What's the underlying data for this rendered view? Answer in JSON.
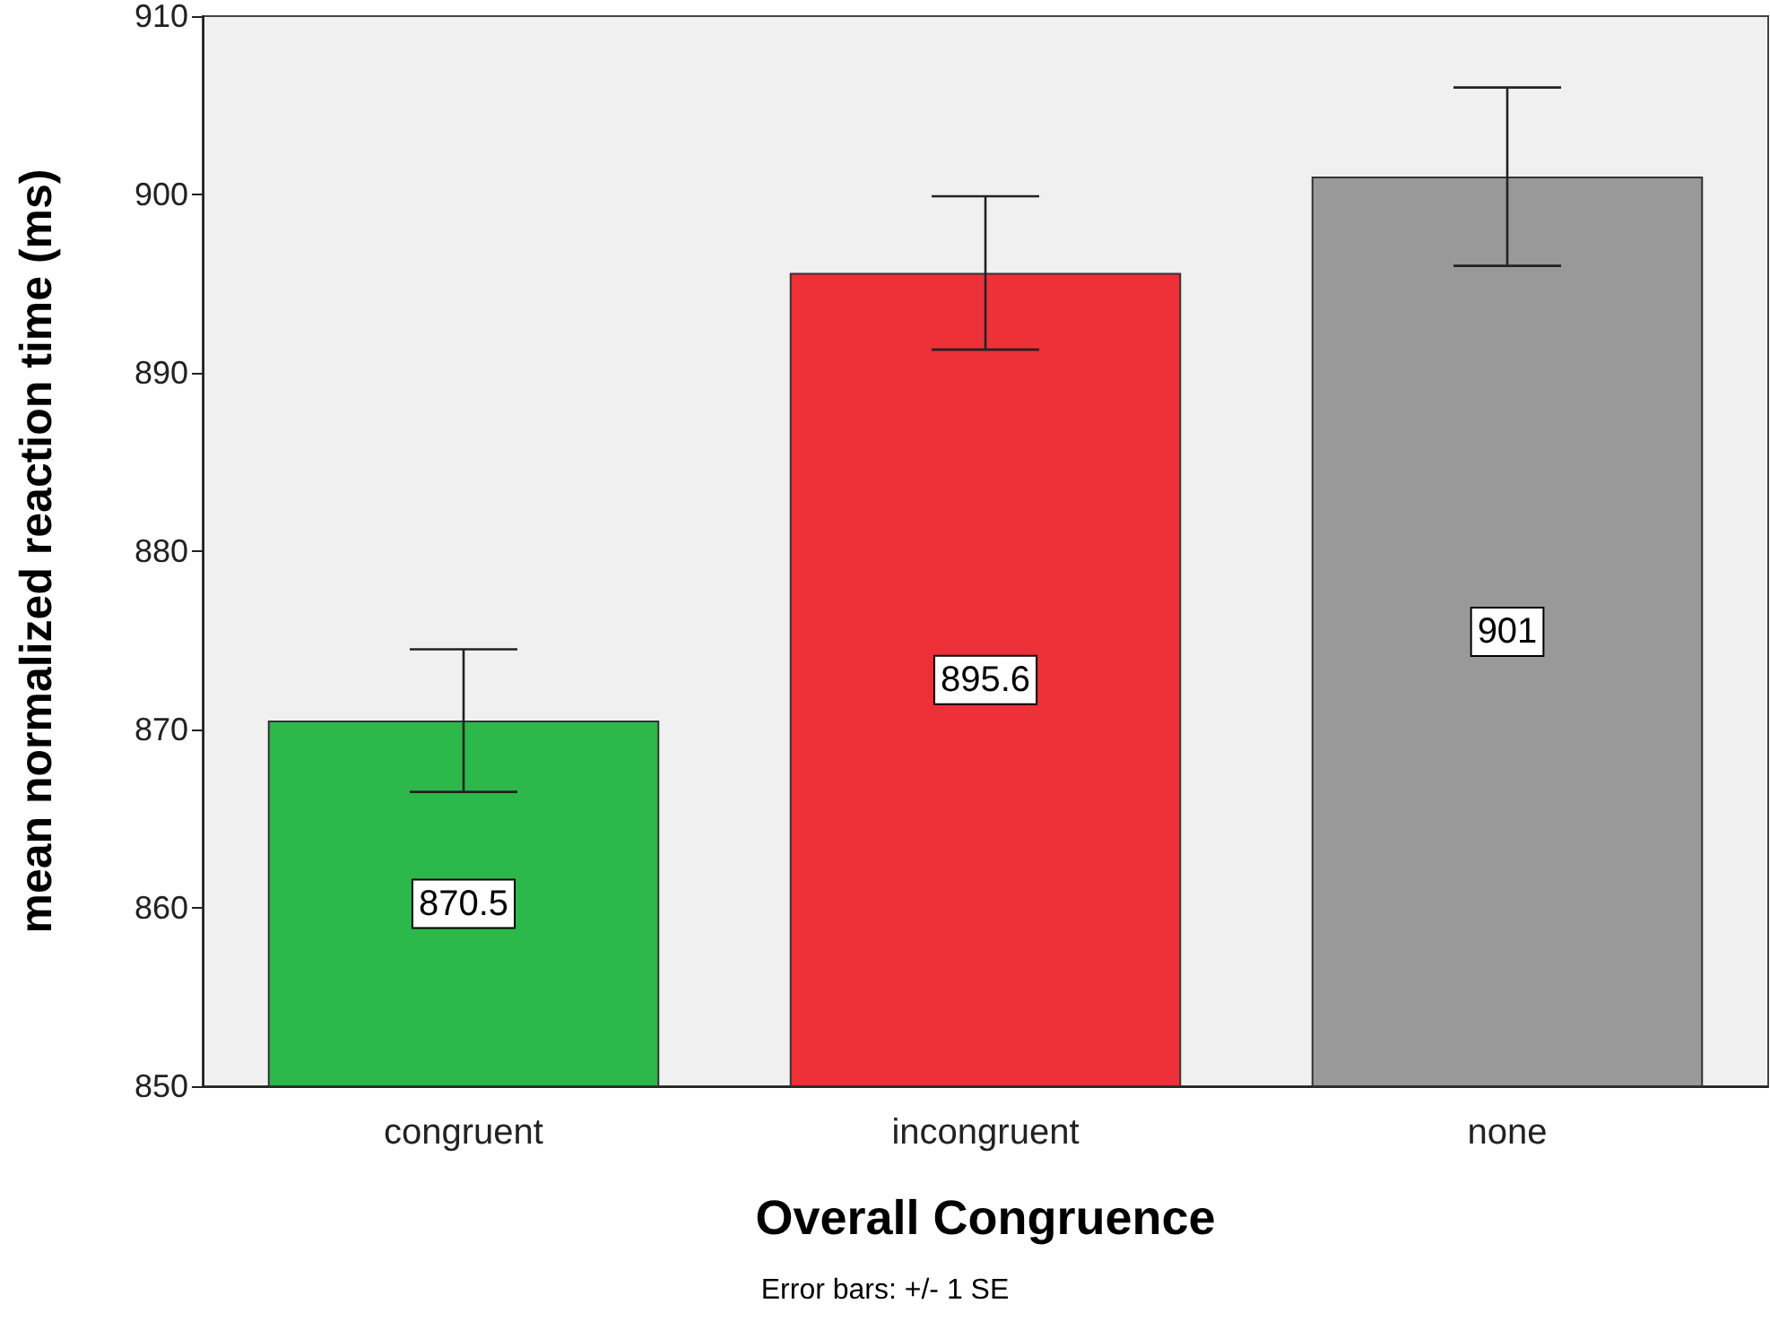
{
  "chart_data": {
    "type": "bar",
    "xlabel": "Overall Congruence",
    "ylabel": "mean normalized reaction time (ms)",
    "categories": [
      "congruent",
      "incongruent",
      "none"
    ],
    "values": [
      870.5,
      895.6,
      901
    ],
    "colors": [
      "#2db84b",
      "#ee3038",
      "#999999"
    ],
    "errors": [
      4,
      4.3,
      5
    ],
    "data_labels": true,
    "ylim": [
      850,
      910
    ],
    "yticks": [
      850,
      860,
      870,
      880,
      890,
      900,
      910
    ],
    "annotations": [
      "Error bars: +/- 1 SE"
    ]
  }
}
